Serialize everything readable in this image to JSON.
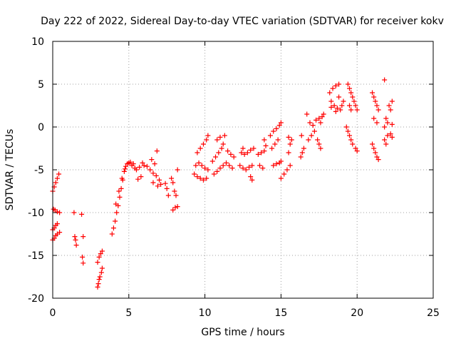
{
  "chart_data": {
    "type": "scatter",
    "title": "Day 222 of 2022, Sidereal Day-to-day VTEC variation (SDTVAR) for receiver kokv",
    "xlabel": "GPS time / hours",
    "ylabel": "SDTVAR / TECUs",
    "xlim": [
      0,
      25
    ],
    "ylim": [
      -20,
      10
    ],
    "xticks": [
      "0",
      "5",
      "10",
      "15",
      "20",
      "25"
    ],
    "yticks": [
      "-20",
      "-15",
      "-10",
      "-5",
      "0",
      "5",
      "10"
    ],
    "xtick_values": [
      0,
      5,
      10,
      15,
      20,
      25
    ],
    "ytick_values": [
      -20,
      -15,
      -10,
      -5,
      0,
      5,
      10
    ],
    "grid": true,
    "marker": "plus",
    "color": "#ff0000",
    "series": [
      {
        "points": [
          [
            0.0,
            -7.5
          ],
          [
            0.1,
            -7.0
          ],
          [
            0.2,
            -6.5
          ],
          [
            0.3,
            -6.0
          ],
          [
            0.4,
            -5.5
          ],
          [
            0.05,
            -9.6
          ],
          [
            0.15,
            -9.7
          ],
          [
            0.3,
            -9.9
          ],
          [
            0.45,
            -10.0
          ],
          [
            0.0,
            -12.0
          ],
          [
            0.1,
            -11.8
          ],
          [
            0.2,
            -11.5
          ],
          [
            0.3,
            -11.3
          ],
          [
            0.0,
            -13.2
          ],
          [
            0.1,
            -13.0
          ],
          [
            0.2,
            -12.7
          ],
          [
            0.3,
            -12.5
          ],
          [
            0.45,
            -12.3
          ],
          [
            1.4,
            -10.0
          ],
          [
            1.45,
            -12.8
          ],
          [
            1.5,
            -13.2
          ],
          [
            1.55,
            -13.8
          ],
          [
            1.9,
            -10.2
          ],
          [
            2.0,
            -12.8
          ],
          [
            1.95,
            -15.2
          ],
          [
            2.0,
            -15.9
          ],
          [
            2.95,
            -18.7
          ],
          [
            3.0,
            -18.3
          ],
          [
            3.05,
            -17.8
          ],
          [
            3.1,
            -17.5
          ],
          [
            3.2,
            -17.0
          ],
          [
            3.25,
            -16.5
          ],
          [
            3.05,
            -15.2
          ],
          [
            3.15,
            -14.8
          ],
          [
            3.25,
            -14.5
          ],
          [
            2.95,
            -15.8
          ],
          [
            3.9,
            -12.5
          ],
          [
            4.0,
            -11.8
          ],
          [
            4.1,
            -11.0
          ],
          [
            4.2,
            -10.0
          ],
          [
            4.3,
            -9.2
          ],
          [
            4.4,
            -8.2
          ],
          [
            4.5,
            -7.2
          ],
          [
            4.6,
            -6.2
          ],
          [
            4.7,
            -5.2
          ],
          [
            4.8,
            -4.6
          ],
          [
            4.9,
            -4.3
          ],
          [
            5.0,
            -4.2
          ],
          [
            5.1,
            -4.1
          ],
          [
            4.15,
            -9.0
          ],
          [
            4.35,
            -7.5
          ],
          [
            4.55,
            -6.0
          ],
          [
            4.75,
            -4.9
          ],
          [
            5.2,
            -4.5
          ],
          [
            5.3,
            -4.3
          ],
          [
            5.4,
            -4.8
          ],
          [
            5.5,
            -5.0
          ],
          [
            5.7,
            -4.7
          ],
          [
            5.9,
            -4.2
          ],
          [
            6.0,
            -4.5
          ],
          [
            5.8,
            -5.8
          ],
          [
            5.6,
            -6.1
          ],
          [
            6.2,
            -4.6
          ],
          [
            6.4,
            -5.0
          ],
          [
            6.6,
            -5.4
          ],
          [
            6.8,
            -5.7
          ],
          [
            7.0,
            -6.2
          ],
          [
            7.1,
            -6.7
          ],
          [
            6.6,
            -6.5
          ],
          [
            6.9,
            -6.9
          ],
          [
            6.85,
            -2.8
          ],
          [
            6.5,
            -3.8
          ],
          [
            6.7,
            -4.3
          ],
          [
            7.4,
            -6.6
          ],
          [
            7.5,
            -7.2
          ],
          [
            7.6,
            -8.0
          ],
          [
            7.8,
            -6.0
          ],
          [
            7.9,
            -6.5
          ],
          [
            8.0,
            -7.5
          ],
          [
            8.1,
            -8.0
          ],
          [
            8.2,
            -5.0
          ],
          [
            7.9,
            -9.7
          ],
          [
            8.05,
            -9.4
          ],
          [
            8.2,
            -9.3
          ],
          [
            9.3,
            -5.5
          ],
          [
            9.5,
            -5.8
          ],
          [
            9.7,
            -6.0
          ],
          [
            9.9,
            -6.2
          ],
          [
            10.1,
            -6.0
          ],
          [
            9.4,
            -4.5
          ],
          [
            9.6,
            -4.2
          ],
          [
            9.8,
            -4.5
          ],
          [
            10.0,
            -4.8
          ],
          [
            10.2,
            -5.0
          ],
          [
            9.5,
            -3.0
          ],
          [
            9.7,
            -2.5
          ],
          [
            9.9,
            -2.0
          ],
          [
            10.1,
            -1.5
          ],
          [
            10.2,
            -1.0
          ],
          [
            10.5,
            -4.0
          ],
          [
            10.7,
            -3.5
          ],
          [
            10.9,
            -3.0
          ],
          [
            11.1,
            -2.5
          ],
          [
            11.2,
            -2.0
          ],
          [
            10.6,
            -5.5
          ],
          [
            10.8,
            -5.2
          ],
          [
            11.0,
            -4.8
          ],
          [
            11.2,
            -4.5
          ],
          [
            11.4,
            -4.2
          ],
          [
            10.8,
            -1.5
          ],
          [
            11.0,
            -1.2
          ],
          [
            11.3,
            -1.0
          ],
          [
            11.5,
            -2.8
          ],
          [
            11.7,
            -3.2
          ],
          [
            11.9,
            -3.5
          ],
          [
            11.6,
            -4.5
          ],
          [
            11.8,
            -4.8
          ],
          [
            12.3,
            -4.5
          ],
          [
            12.5,
            -4.8
          ],
          [
            12.7,
            -5.0
          ],
          [
            12.9,
            -4.7
          ],
          [
            13.1,
            -4.5
          ],
          [
            12.4,
            -3.0
          ],
          [
            12.6,
            -3.2
          ],
          [
            12.8,
            -3.0
          ],
          [
            13.0,
            -2.7
          ],
          [
            13.2,
            -2.5
          ],
          [
            13.0,
            -5.8
          ],
          [
            13.1,
            -6.2
          ],
          [
            12.5,
            -2.5
          ],
          [
            13.5,
            -3.2
          ],
          [
            13.7,
            -3.0
          ],
          [
            13.9,
            -2.8
          ],
          [
            13.6,
            -4.5
          ],
          [
            13.8,
            -4.8
          ],
          [
            13.9,
            -1.5
          ],
          [
            14.0,
            -2.2
          ],
          [
            14.3,
            -1.0
          ],
          [
            14.5,
            -0.5
          ],
          [
            14.7,
            -0.2
          ],
          [
            14.9,
            0.2
          ],
          [
            15.0,
            0.5
          ],
          [
            14.4,
            -2.5
          ],
          [
            14.6,
            -2.0
          ],
          [
            14.8,
            -1.5
          ],
          [
            14.5,
            -4.5
          ],
          [
            14.7,
            -4.3
          ],
          [
            14.9,
            -4.2
          ],
          [
            15.0,
            -4.0
          ],
          [
            15.0,
            -6.0
          ],
          [
            15.2,
            -5.5
          ],
          [
            15.4,
            -5.0
          ],
          [
            15.6,
            -4.5
          ],
          [
            15.5,
            -3.0
          ],
          [
            15.6,
            -2.0
          ],
          [
            15.7,
            -1.5
          ],
          [
            15.5,
            -1.2
          ],
          [
            16.3,
            -3.5
          ],
          [
            16.4,
            -3.0
          ],
          [
            16.5,
            -2.5
          ],
          [
            16.35,
            -1.0
          ],
          [
            16.8,
            -1.5
          ],
          [
            17.0,
            -1.0
          ],
          [
            17.2,
            -0.5
          ],
          [
            16.9,
            0.5
          ],
          [
            17.1,
            0.2
          ],
          [
            16.7,
            1.5
          ],
          [
            17.4,
            -1.5
          ],
          [
            17.5,
            -2.0
          ],
          [
            17.6,
            -2.5
          ],
          [
            17.3,
            0.8
          ],
          [
            17.5,
            1.0
          ],
          [
            17.7,
            1.2
          ],
          [
            17.8,
            1.5
          ],
          [
            17.6,
            0.5
          ],
          [
            18.2,
            4.0
          ],
          [
            18.4,
            4.5
          ],
          [
            18.6,
            4.8
          ],
          [
            18.8,
            5.0
          ],
          [
            18.3,
            3.0
          ],
          [
            18.5,
            2.5
          ],
          [
            18.7,
            2.2
          ],
          [
            18.9,
            2.0
          ],
          [
            19.0,
            2.5
          ],
          [
            19.1,
            3.0
          ],
          [
            18.6,
            1.8
          ],
          [
            18.3,
            2.3
          ],
          [
            18.8,
            3.5
          ],
          [
            19.4,
            5.0
          ],
          [
            19.5,
            4.5
          ],
          [
            19.6,
            4.0
          ],
          [
            19.7,
            3.5
          ],
          [
            19.8,
            3.0
          ],
          [
            19.5,
            2.5
          ],
          [
            19.6,
            2.0
          ],
          [
            19.9,
            2.5
          ],
          [
            20.0,
            2.0
          ],
          [
            19.3,
            0.0
          ],
          [
            19.4,
            -0.5
          ],
          [
            19.5,
            -1.0
          ],
          [
            19.6,
            -1.5
          ],
          [
            19.7,
            -2.0
          ],
          [
            19.9,
            -2.5
          ],
          [
            20.0,
            -2.8
          ],
          [
            21.0,
            4.0
          ],
          [
            21.1,
            3.5
          ],
          [
            21.2,
            3.0
          ],
          [
            21.3,
            2.5
          ],
          [
            21.4,
            2.0
          ],
          [
            21.0,
            -2.0
          ],
          [
            21.1,
            -2.5
          ],
          [
            21.2,
            -3.0
          ],
          [
            21.3,
            -3.5
          ],
          [
            21.4,
            -3.8
          ],
          [
            21.1,
            1.0
          ],
          [
            21.3,
            0.5
          ],
          [
            21.8,
            5.5
          ],
          [
            21.9,
            1.0
          ],
          [
            22.0,
            0.5
          ],
          [
            21.8,
            0.0
          ],
          [
            22.1,
            2.5
          ],
          [
            22.2,
            2.0
          ],
          [
            22.3,
            3.0
          ],
          [
            22.0,
            -1.0
          ],
          [
            22.2,
            -0.8
          ],
          [
            22.3,
            -1.2
          ],
          [
            21.8,
            -1.5
          ],
          [
            21.9,
            -2.0
          ],
          [
            22.3,
            0.3
          ]
        ]
      }
    ]
  }
}
